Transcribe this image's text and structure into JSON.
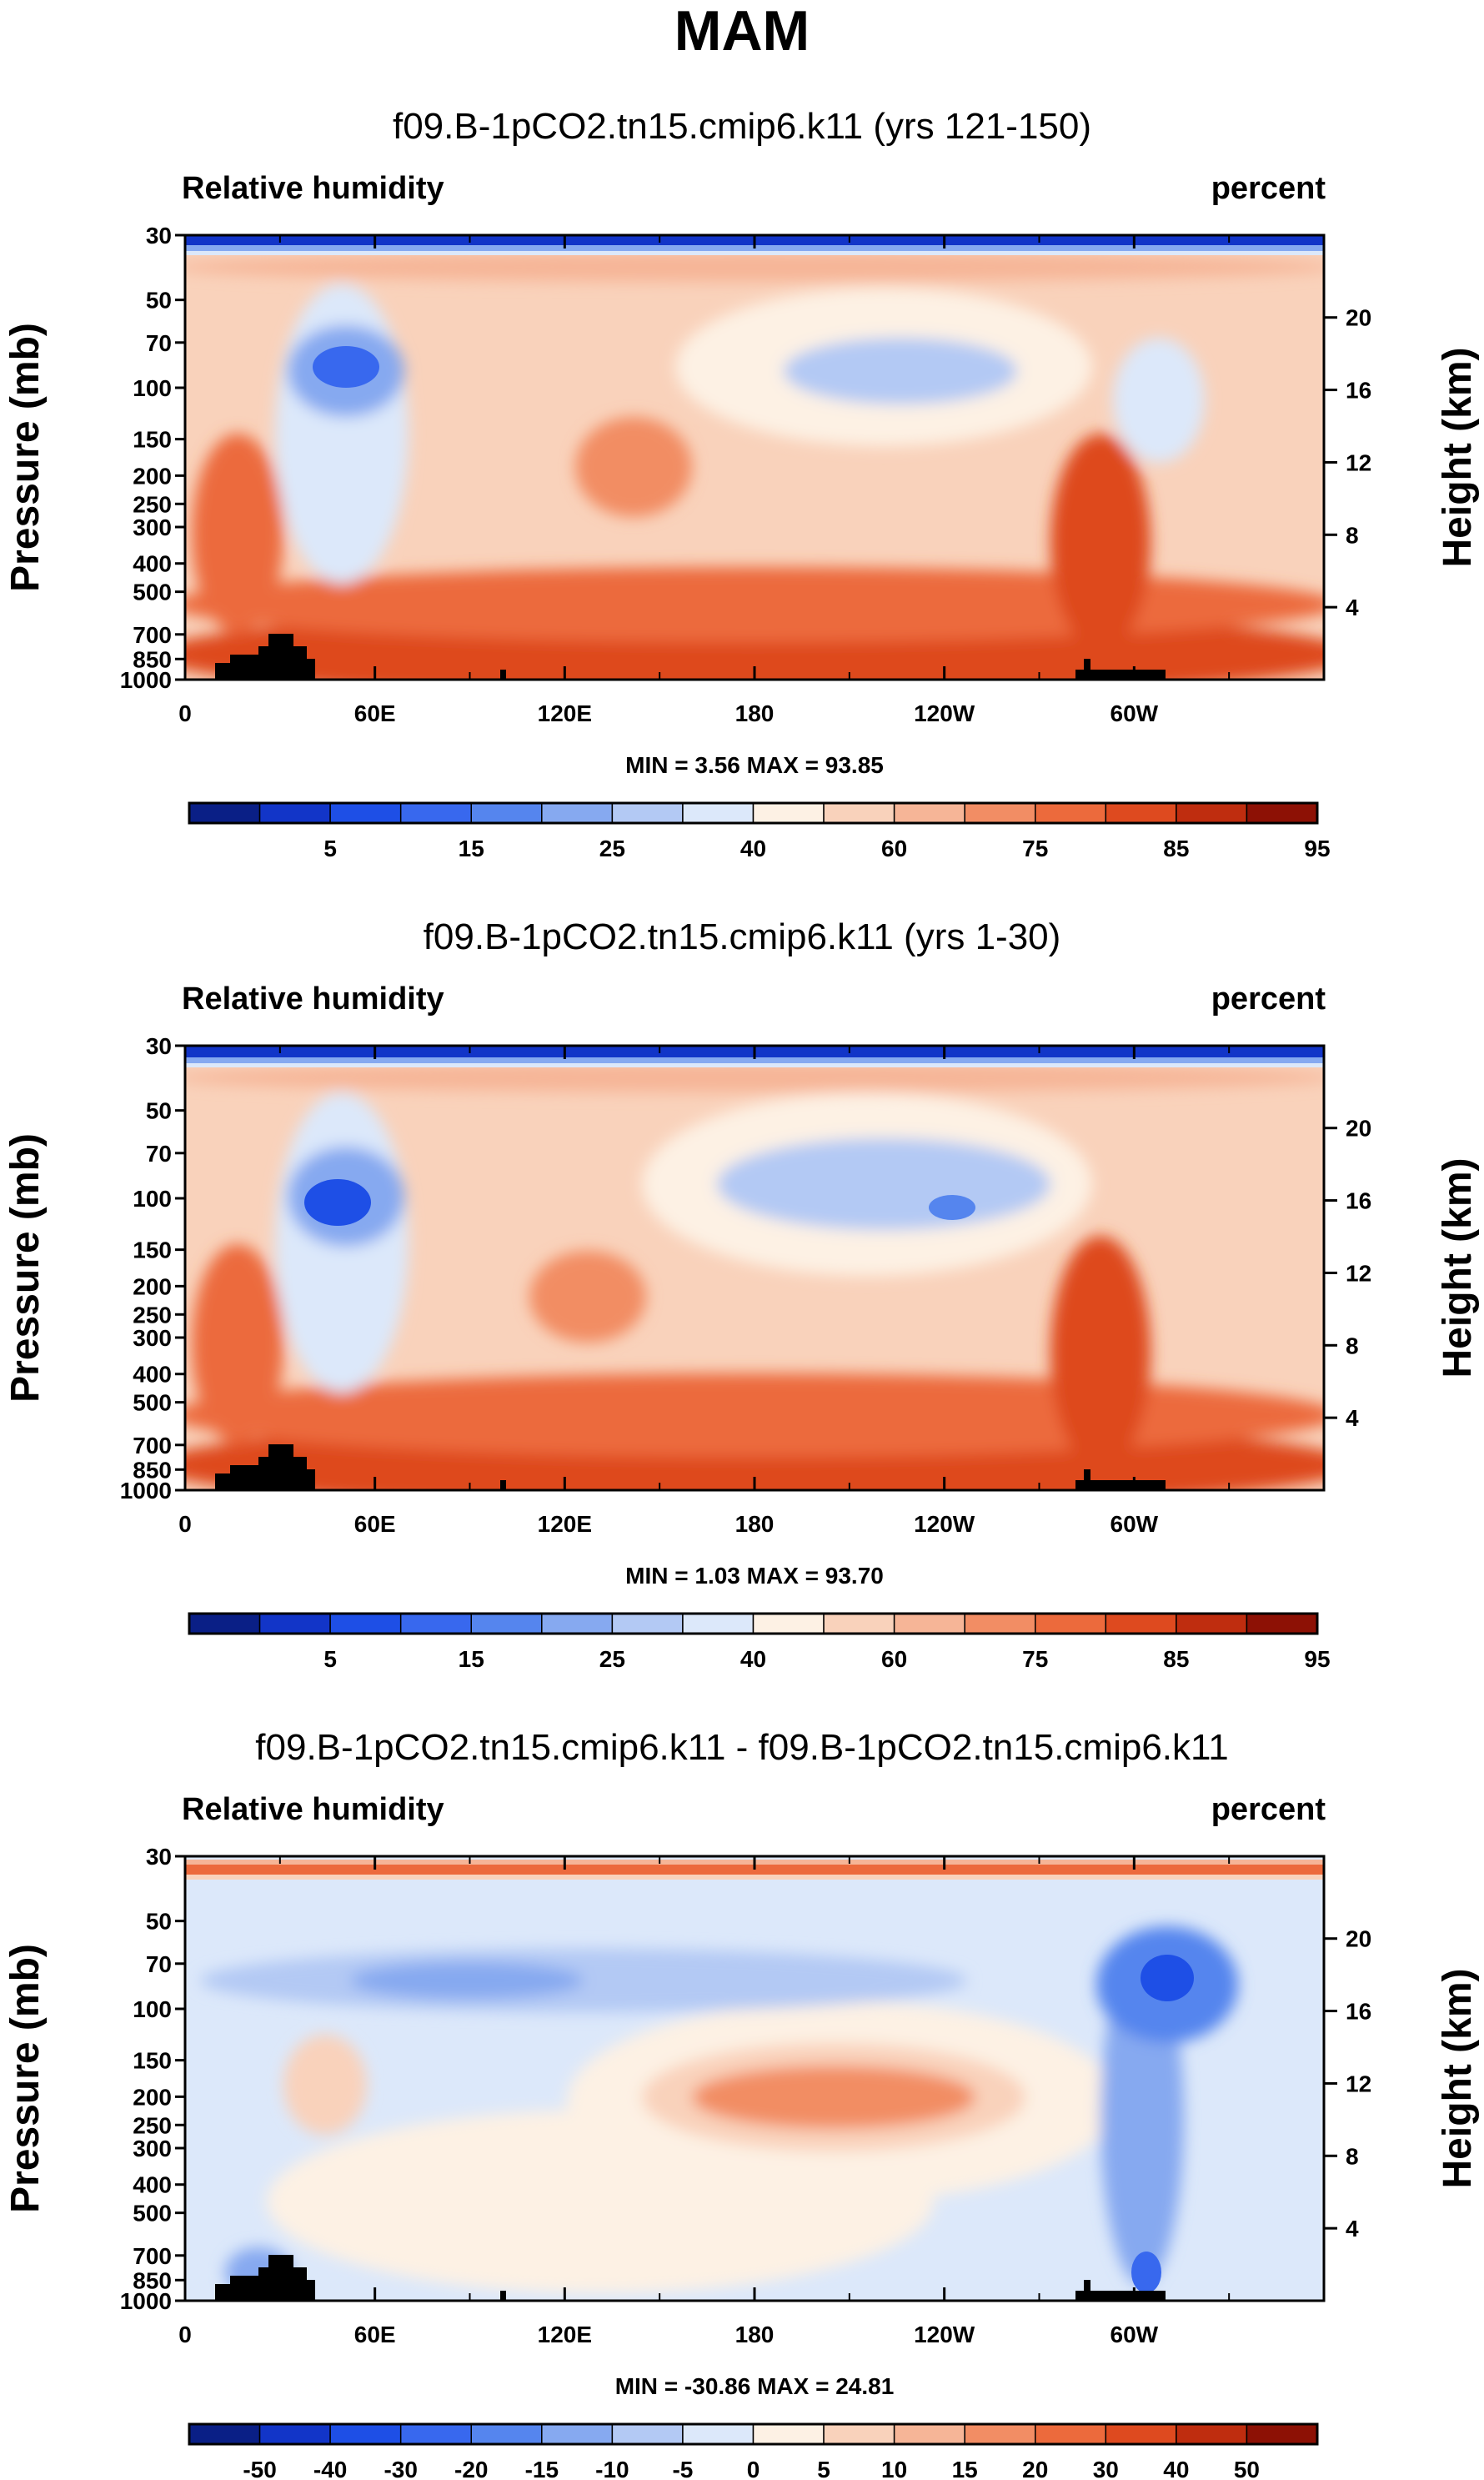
{
  "title": "MAM",
  "chart_data": [
    {
      "type": "heatmap",
      "title": "f09.B-1pCO2.tn15.cmip6.k11 (yrs 121-150)",
      "left_label": "Relative humidity",
      "right_label": "percent",
      "ylabel": "Pressure (mb)",
      "ylabel_right": "Height (km)",
      "x_ticks": [
        "0",
        "60E",
        "120E",
        "180",
        "120W",
        "60W"
      ],
      "y_ticks": [
        "30",
        "50",
        "70",
        "100",
        "150",
        "200",
        "250",
        "300",
        "400",
        "500",
        "700",
        "850",
        "1000"
      ],
      "height_ticks": [
        "20",
        "16",
        "12",
        "8",
        "4"
      ],
      "minmax": "MIN =   3.56  MAX =  93.85",
      "colorbar_labels": [
        "5",
        "15",
        "25",
        "40",
        "60",
        "75",
        "85",
        "95"
      ],
      "colorbar_colors": [
        "#0a1f86",
        "#1235c8",
        "#1e4fe6",
        "#3868ee",
        "#5585ee",
        "#86a9f0",
        "#b3c9f4",
        "#dce8fa",
        "#fdf1e4",
        "#f9d2bb",
        "#f6b597",
        "#f28d64",
        "#ec6a3c",
        "#de4a1f",
        "#bf2d0f",
        "#8d1105"
      ]
    },
    {
      "type": "heatmap",
      "title": "f09.B-1pCO2.tn15.cmip6.k11 (yrs 1-30)",
      "left_label": "Relative humidity",
      "right_label": "percent",
      "ylabel": "Pressure (mb)",
      "ylabel_right": "Height (km)",
      "x_ticks": [
        "0",
        "60E",
        "120E",
        "180",
        "120W",
        "60W"
      ],
      "y_ticks": [
        "30",
        "50",
        "70",
        "100",
        "150",
        "200",
        "250",
        "300",
        "400",
        "500",
        "700",
        "850",
        "1000"
      ],
      "height_ticks": [
        "20",
        "16",
        "12",
        "8",
        "4"
      ],
      "minmax": "MIN =   1.03  MAX =  93.70",
      "colorbar_labels": [
        "5",
        "15",
        "25",
        "40",
        "60",
        "75",
        "85",
        "95"
      ],
      "colorbar_colors": [
        "#0a1f86",
        "#1235c8",
        "#1e4fe6",
        "#3868ee",
        "#5585ee",
        "#86a9f0",
        "#b3c9f4",
        "#dce8fa",
        "#fdf1e4",
        "#f9d2bb",
        "#f6b597",
        "#f28d64",
        "#ec6a3c",
        "#de4a1f",
        "#bf2d0f",
        "#8d1105"
      ]
    },
    {
      "type": "heatmap",
      "title": "f09.B-1pCO2.tn15.cmip6.k11 - f09.B-1pCO2.tn15.cmip6.k11",
      "left_label": "Relative humidity",
      "right_label": "percent",
      "ylabel": "Pressure (mb)",
      "ylabel_right": "Height (km)",
      "x_ticks": [
        "0",
        "60E",
        "120E",
        "180",
        "120W",
        "60W"
      ],
      "y_ticks": [
        "30",
        "50",
        "70",
        "100",
        "150",
        "200",
        "250",
        "300",
        "400",
        "500",
        "700",
        "850",
        "1000"
      ],
      "height_ticks": [
        "20",
        "16",
        "12",
        "8",
        "4"
      ],
      "minmax": "MIN = -30.86  MAX =  24.81",
      "colorbar_labels": [
        "-50",
        "-40",
        "-30",
        "-20",
        "-15",
        "-10",
        "-5",
        "0",
        "5",
        "10",
        "15",
        "20",
        "30",
        "40",
        "50"
      ],
      "colorbar_colors": [
        "#0a1f86",
        "#1235c8",
        "#1e4fe6",
        "#3868ee",
        "#5585ee",
        "#86a9f0",
        "#b3c9f4",
        "#dce8fa",
        "#fdf1e4",
        "#f9d2bb",
        "#f6b597",
        "#f28d64",
        "#ec6a3c",
        "#de4a1f",
        "#bf2d0f",
        "#8d1105"
      ]
    }
  ]
}
